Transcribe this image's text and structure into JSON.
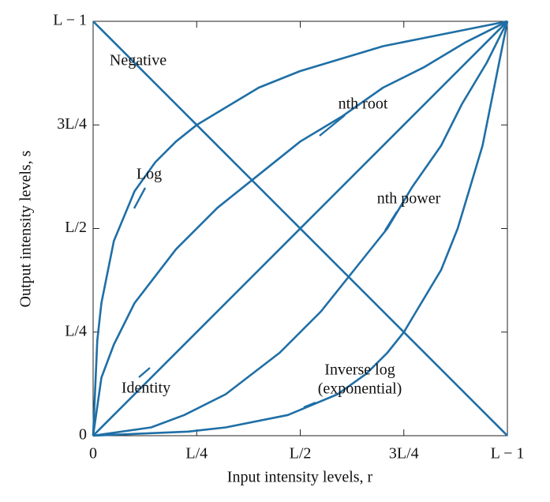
{
  "chart_data": {
    "type": "line",
    "x_label": "Input intensity levels, r",
    "y_label": "Output intensity levels, s",
    "xlim": [
      0,
      1
    ],
    "ylim": [
      0,
      1
    ],
    "xticks": [
      0,
      {
        "value": 0.25,
        "label": "L/4"
      },
      {
        "value": 0.5,
        "label": "L/2"
      },
      {
        "value": 0.75,
        "label": "3L/4"
      },
      {
        "value": 1,
        "label": "L − 1"
      }
    ],
    "yticks": [
      0,
      {
        "value": 0.25,
        "label": "L/4"
      },
      {
        "value": 0.5,
        "label": "L/2"
      },
      {
        "value": 0.75,
        "label": "3L/4"
      },
      {
        "value": 1,
        "label": "L − 1"
      }
    ],
    "color": "#1f6fa6",
    "series": [
      {
        "name": "Negative",
        "x": [
          0,
          1
        ],
        "values": [
          1,
          0
        ]
      },
      {
        "name": "Identity",
        "x": [
          0,
          1
        ],
        "values": [
          0,
          1
        ]
      },
      {
        "name": "Log",
        "x": [
          0,
          0.01,
          0.02,
          0.05,
          0.1,
          0.15,
          0.2,
          0.25,
          0.3,
          0.4,
          0.5,
          0.6,
          0.7,
          0.8,
          0.9,
          1
        ],
        "values": [
          0,
          0.23,
          0.32,
          0.47,
          0.59,
          0.66,
          0.71,
          0.75,
          0.78,
          0.84,
          0.88,
          0.91,
          0.94,
          0.96,
          0.98,
          1
        ]
      },
      {
        "name": "Inverse log",
        "x": [
          0,
          0.23,
          0.32,
          0.47,
          0.59,
          0.66,
          0.71,
          0.75,
          0.78,
          0.84,
          0.88,
          0.91,
          0.94,
          0.96,
          0.98,
          1
        ],
        "values": [
          0,
          0.01,
          0.02,
          0.05,
          0.1,
          0.15,
          0.2,
          0.25,
          0.3,
          0.4,
          0.5,
          0.6,
          0.7,
          0.8,
          0.9,
          1
        ]
      },
      {
        "name": "nth root",
        "x": [
          0,
          0.02,
          0.05,
          0.1,
          0.2,
          0.3,
          0.4,
          0.5,
          0.6,
          0.7,
          0.8,
          0.9,
          1
        ],
        "values": [
          0,
          0.14,
          0.22,
          0.32,
          0.45,
          0.55,
          0.63,
          0.71,
          0.77,
          0.84,
          0.89,
          0.95,
          1
        ]
      },
      {
        "name": "nth power",
        "x": [
          0,
          0.14,
          0.22,
          0.32,
          0.45,
          0.55,
          0.63,
          0.71,
          0.77,
          0.84,
          0.89,
          0.95,
          1
        ],
        "values": [
          0,
          0.02,
          0.05,
          0.1,
          0.2,
          0.3,
          0.4,
          0.5,
          0.6,
          0.7,
          0.8,
          0.9,
          1
        ]
      }
    ],
    "annotations": [
      "Negative",
      "nth root",
      "Log",
      "nth power",
      "Identity",
      "Inverse log",
      "(exponential)"
    ]
  }
}
